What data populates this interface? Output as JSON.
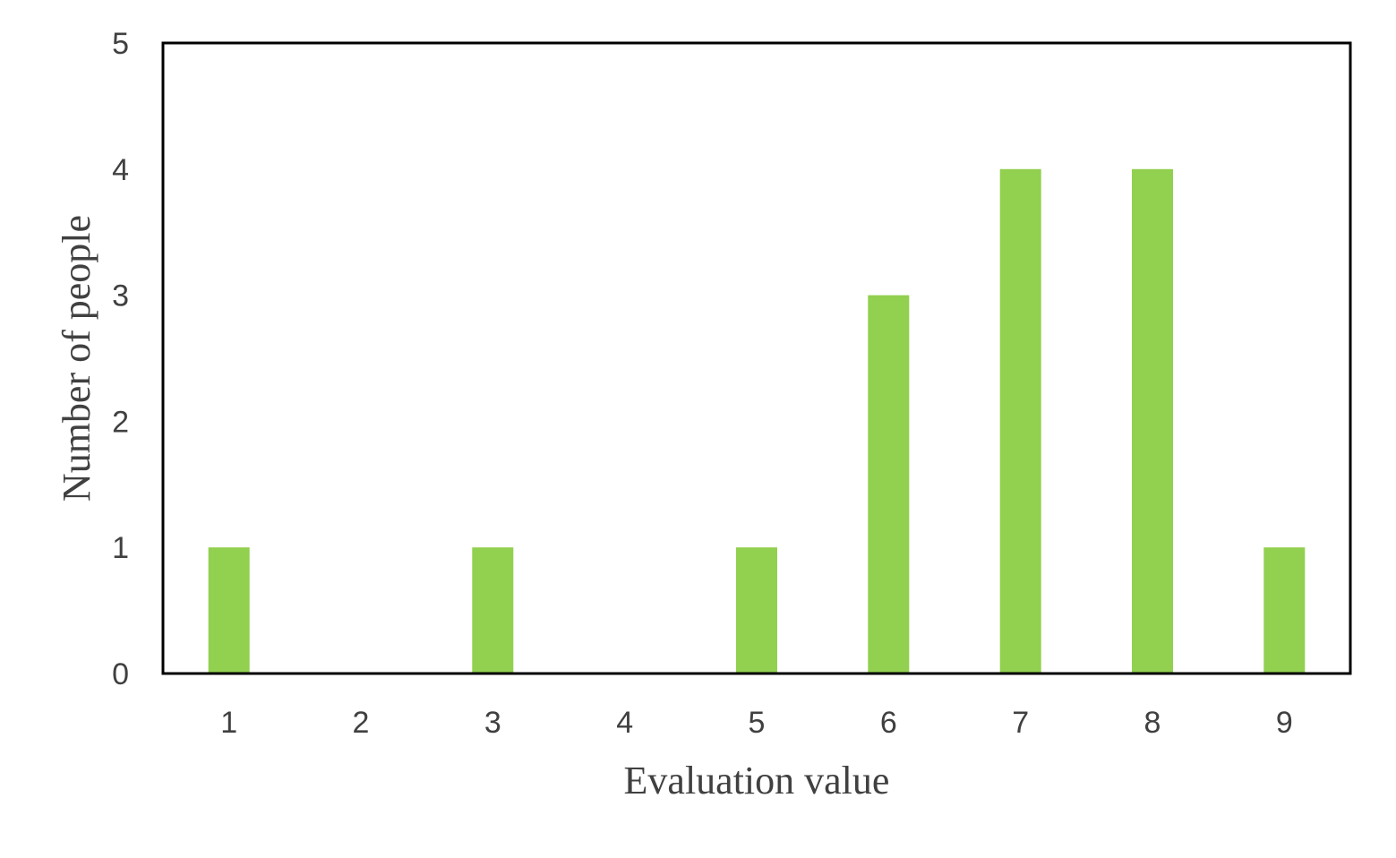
{
  "chart_data": {
    "type": "bar",
    "categories": [
      "1",
      "2",
      "3",
      "4",
      "5",
      "6",
      "7",
      "8",
      "9"
    ],
    "values": [
      1,
      0,
      1,
      0,
      1,
      3,
      4,
      4,
      1
    ],
    "title": "",
    "xlabel": "Evaluation value",
    "ylabel": "Number of people",
    "ylim": [
      0,
      5
    ],
    "yticks": [
      "0",
      "1",
      "2",
      "3",
      "4",
      "5"
    ],
    "grid": false,
    "legend": "none",
    "bar_color": "#92d050",
    "frame_color": "#000000",
    "text_color": "#404040"
  }
}
